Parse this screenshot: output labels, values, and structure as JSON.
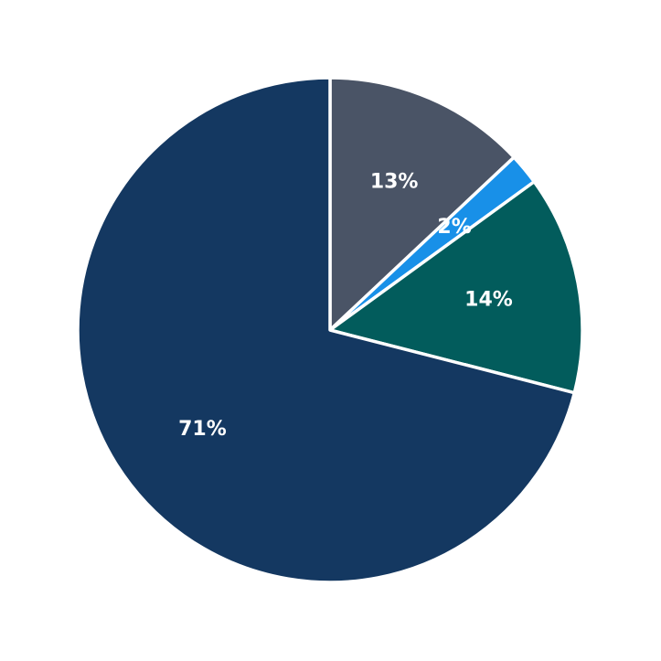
{
  "chart_data": {
    "type": "pie",
    "slices": [
      {
        "value": 13,
        "label": "13%",
        "color": "#4a5466"
      },
      {
        "value": 2,
        "label": "2%",
        "color": "#1890e8"
      },
      {
        "value": 14,
        "label": "14%",
        "color": "#025c5c"
      },
      {
        "value": 71,
        "label": "71%",
        "color": "#143861"
      }
    ],
    "start_angle": "top",
    "direction": "clockwise",
    "label_color": "#ffffff",
    "separator_color": "#ffffff",
    "legend": "none"
  }
}
